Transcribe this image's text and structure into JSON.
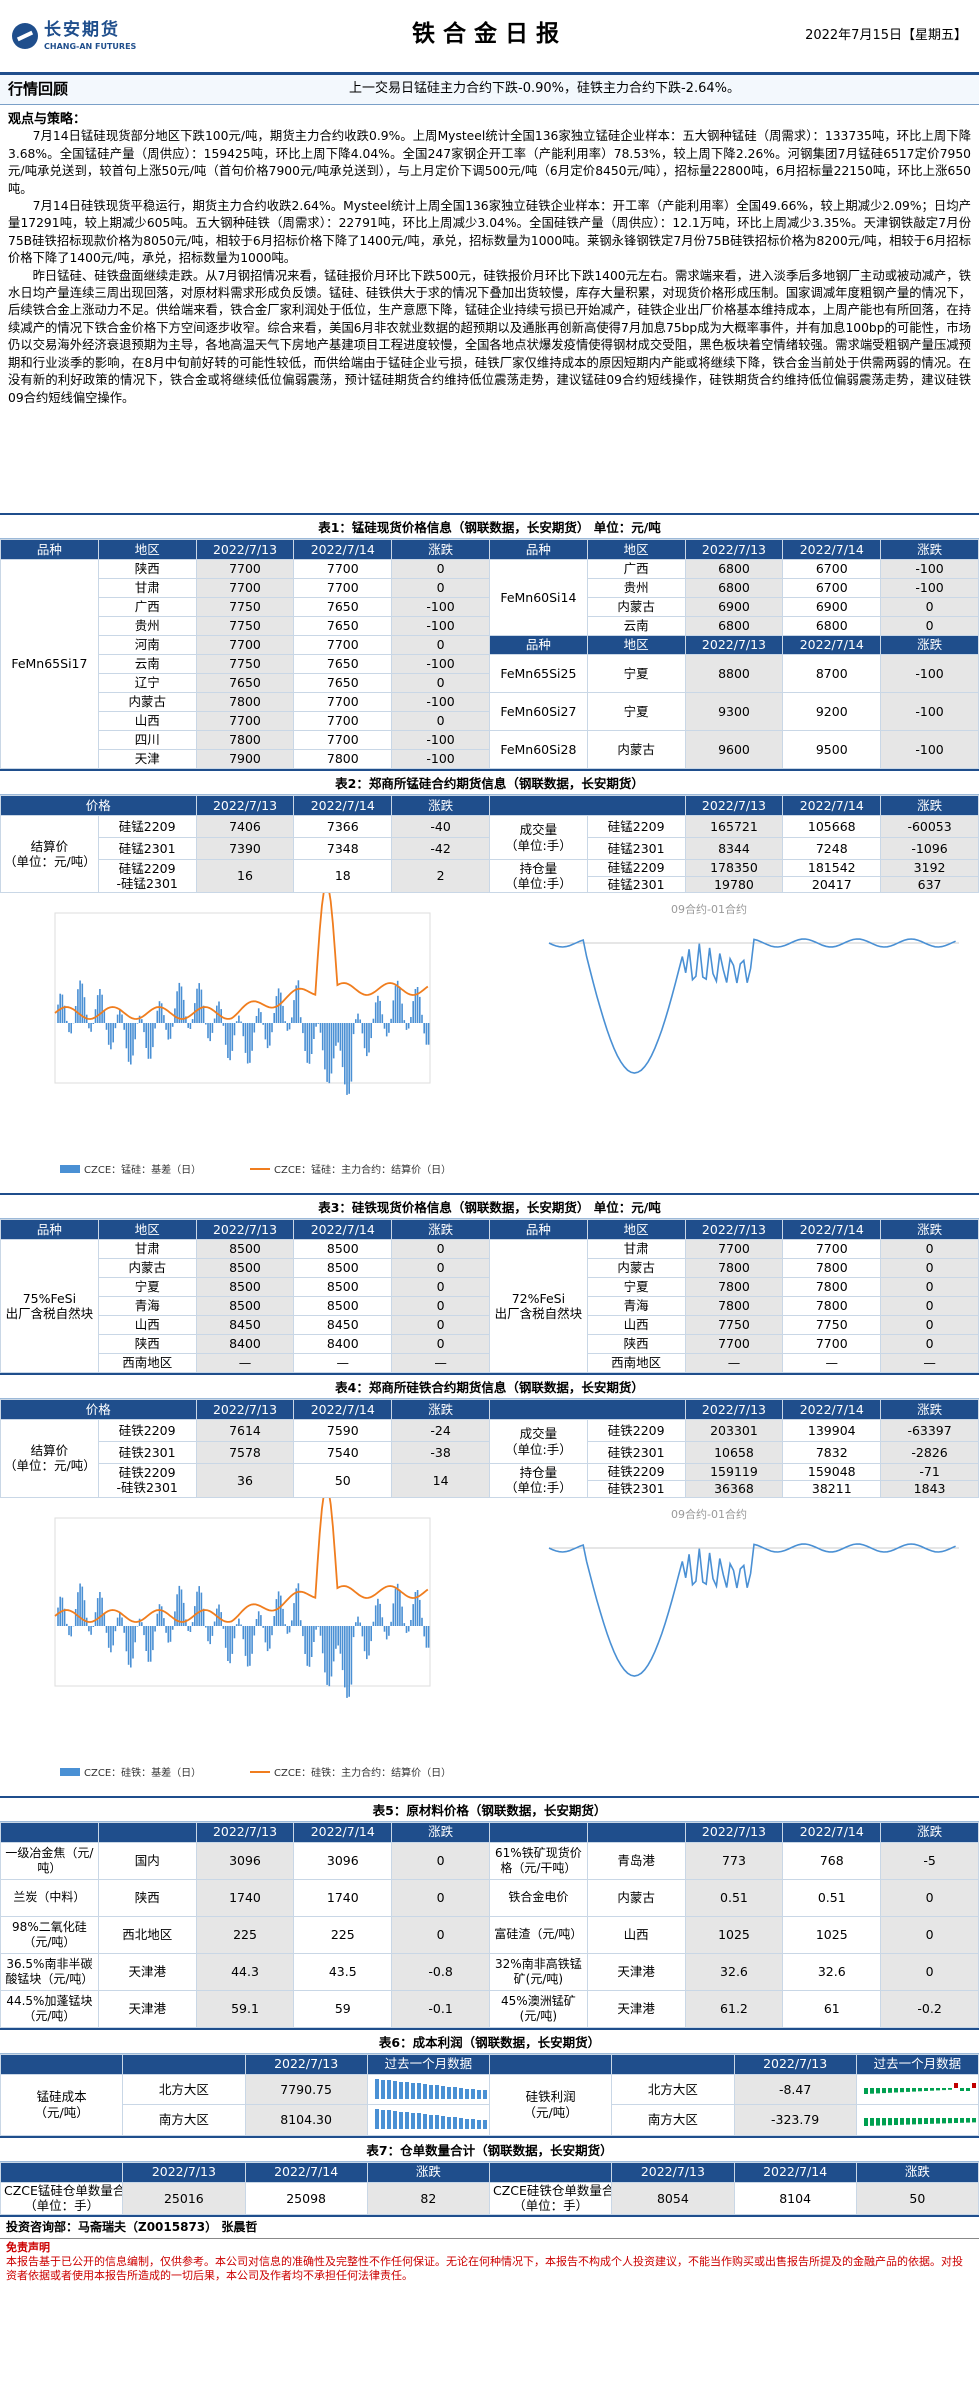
{
  "header": {
    "logo_cn": "长安期货",
    "logo_en": "CHANG-AN FUTURES",
    "title": "铁合金日报",
    "date": "2022年7月15日【星期五】"
  },
  "review": {
    "label": "行情回顾",
    "text": "上一交易日锰硅主力合约下跌-0.90%，硅铁主力合约下跌-2.64%。"
  },
  "views": {
    "heading": "观点与策略：",
    "p1": "7月14日锰硅现货部分地区下跌100元/吨，期货主力合约收跌0.9%。上周Mysteel统计全国136家独立锰硅企业样本：五大钢种锰硅（周需求）：133735吨，环比上周下降3.68%。全国锰硅产量（周供应）：159425吨，环比上周下降4.04%。全国247家钢企开工率（产能利用率）78.53%，较上周下降2.26%。河钢集团7月锰硅6517定价7950元/吨承兑送到，较首句上涨50元/吨（首句价格7900元/吨承兑送到），与上月定价下调500元/吨（6月定价8450元/吨），招标量22800吨，6月招标量22150吨，环比上涨650吨。",
    "p2": "7月14日硅铁现货平稳运行，期货主力合约收跌2.64%。Mysteel统计上周全国136家独立硅铁企业样本：开工率（产能利用率）全国49.66%，较上期减少2.09%；日均产量17291吨，较上期减少605吨。五大钢种硅铁（周需求）：22791吨，环比上周减少3.04%。全国硅铁产量（周供应）：12.1万吨，环比上周减少3.35%。天津钢铁敲定7月份75B硅铁招标现款价格为8050元/吨，相较于6月招标价格下降了1400元/吨，承兑，招标数量为1000吨。莱钢永锋钢铁定7月份75B硅铁招标价格为8200元/吨，相较于6月招标价格下降了1400元/吨，承兑，招标数量为1000吨。",
    "p3": "昨日锰硅、硅铁盘面继续走跌。从7月钢招情况来看，锰硅报价月环比下跌500元，硅铁报价月环比下跌1400元左右。需求端来看，进入淡季后多地钢厂主动或被动减产，铁水日均产量连续三周出现回落，对原材料需求形成负反馈。锰硅、硅铁供大于求的情况下叠加出货较慢，库存大量积累，对现货价格形成压制。国家调减年度粗钢产量的情况下，后续铁合金上涨动力不足。供给端来看，铁合金厂家利润处于低位，生产意愿下降，锰硅企业持续亏损已开始减产，硅铁企业出厂价格基本维持成本，上周产能也有所回落，在持续减产的情况下铁合金价格下方空间逐步收窄。综合来看，美国6月非农就业数据的超预期以及通胀再创新高使得7月加息75bp成为大概率事件，并有加息100bp的可能性，市场仍以交易海外经济衰退预期为主导，各地高温天气下房地产基建项目工程进度较慢，全国各地点状爆发疫情使得钢材成交受阻，黑色板块着空情绪较强。需求端受粗钢产量压减预期和行业淡季的影响，在8月中旬前好转的可能性较低，而供给端由于锰硅企业亏损，硅铁厂家仅维持成本的原因短期内产能或将继续下降，铁合金当前处于供需两弱的情况。在没有新的利好政策的情况下，铁合金或将继续低位偏弱震荡，预计锰硅期货合约维持低位震荡走势，建议锰硅09合约短线操作，硅铁期货合约维持低位偏弱震荡走势，建议硅铁09合约短线偏空操作。"
  },
  "t1": {
    "caption": "表1：锰硅现货价格信息（钢联数据，长安期货） 单位：元/吨",
    "heads": [
      "品种",
      "地区",
      "2022/7/13",
      "2022/7/14",
      "涨跌"
    ],
    "left_product": "FeMn65Si17",
    "left": [
      [
        "陕西",
        "7700",
        "7700",
        "0"
      ],
      [
        "甘肃",
        "7700",
        "7700",
        "0"
      ],
      [
        "广西",
        "7750",
        "7650",
        "-100"
      ],
      [
        "贵州",
        "7750",
        "7650",
        "-100"
      ],
      [
        "河南",
        "7700",
        "7700",
        "0"
      ],
      [
        "云南",
        "7750",
        "7650",
        "-100"
      ],
      [
        "辽宁",
        "7650",
        "7650",
        "0"
      ],
      [
        "内蒙古",
        "7800",
        "7700",
        "-100"
      ],
      [
        "山西",
        "7700",
        "7700",
        "0"
      ],
      [
        "四川",
        "7800",
        "7700",
        "-100"
      ],
      [
        "天津",
        "7900",
        "7800",
        "-100"
      ]
    ],
    "right_a_product": "FeMn60Si14",
    "right_a": [
      [
        "广西",
        "6800",
        "6700",
        "-100"
      ],
      [
        "贵州",
        "6800",
        "6700",
        "-100"
      ],
      [
        "内蒙古",
        "6900",
        "6900",
        "0"
      ],
      [
        "云南",
        "6800",
        "6800",
        "0"
      ]
    ],
    "right_b": [
      {
        "product": "FeMn65Si25",
        "region": "宁夏",
        "v1": "8800",
        "v2": "8700",
        "d": "-100"
      },
      {
        "product": "FeMn60Si27",
        "region": "宁夏",
        "v1": "9300",
        "v2": "9200",
        "d": "-100"
      },
      {
        "product": "FeMn60Si28",
        "region": "内蒙古",
        "v1": "9600",
        "v2": "9500",
        "d": "-100"
      }
    ]
  },
  "t2": {
    "caption": "表2：郑商所锰硅合约期货信息（钢联数据，长安期货）",
    "heads": [
      "价格",
      "",
      "2022/7/13",
      "2022/7/14",
      "涨跌"
    ],
    "settle_label": "结算价\n（单位：元/吨）",
    "rows": [
      [
        "硅锰2209",
        "7406",
        "7366",
        "-40"
      ],
      [
        "硅锰2301",
        "7390",
        "7348",
        "-42"
      ],
      [
        "硅锰2209\n-硅锰2301",
        "16",
        "18",
        "2"
      ]
    ],
    "vol_label": "成交量\n（单位:手）",
    "oi_label": "持仓量\n（单位:手）",
    "vol": [
      [
        "硅锰2209",
        "165721",
        "105668",
        "-60053"
      ],
      [
        "硅锰2301",
        "8344",
        "7248",
        "-1096"
      ]
    ],
    "oi": [
      [
        "硅锰2209",
        "178350",
        "181542",
        "3192"
      ],
      [
        "硅锰2301",
        "19780",
        "20417",
        "637"
      ]
    ]
  },
  "c1": {
    "legend_basis": "CZCE：锰硅：基差（日）",
    "legend_settle": "CZCE：锰硅：主力合约：结算价（日）",
    "title_r": "09合约-01合约"
  },
  "t3": {
    "caption": "表3：硅铁现货价格信息（钢联数据，长安期货） 单位：元/吨",
    "heads": [
      "品种",
      "地区",
      "2022/7/13",
      "2022/7/14",
      "涨跌"
    ],
    "product": "75%FeSi\n出厂含税自然块",
    "product_r": "72%FeSi\n出厂含税自然块",
    "left": [
      [
        "甘肃",
        "8500",
        "8500",
        "0"
      ],
      [
        "内蒙古",
        "8500",
        "8500",
        "0"
      ],
      [
        "宁夏",
        "8500",
        "8500",
        "0"
      ],
      [
        "青海",
        "8500",
        "8500",
        "0"
      ],
      [
        "山西",
        "8450",
        "8450",
        "0"
      ],
      [
        "陕西",
        "8400",
        "8400",
        "0"
      ],
      [
        "西南地区",
        "—",
        "—",
        "—"
      ]
    ],
    "right": [
      [
        "甘肃",
        "7700",
        "7700",
        "0"
      ],
      [
        "内蒙古",
        "7800",
        "7800",
        "0"
      ],
      [
        "宁夏",
        "7800",
        "7800",
        "0"
      ],
      [
        "青海",
        "7800",
        "7800",
        "0"
      ],
      [
        "山西",
        "7750",
        "7750",
        "0"
      ],
      [
        "陕西",
        "7700",
        "7700",
        "0"
      ],
      [
        "西南地区",
        "—",
        "—",
        "—"
      ]
    ]
  },
  "t4": {
    "caption": "表4：郑商所硅铁合约期货信息（钢联数据，长安期货）",
    "heads": [
      "价格",
      "",
      "2022/7/13",
      "2022/7/14",
      "涨跌"
    ],
    "settle_label": "结算价\n（单位：元/吨）",
    "rows": [
      [
        "硅铁2209",
        "7614",
        "7590",
        "-24"
      ],
      [
        "硅铁2301",
        "7578",
        "7540",
        "-38"
      ],
      [
        "硅铁2209\n-硅铁2301",
        "36",
        "50",
        "14"
      ]
    ],
    "vol_label": "成交量\n（单位:手）",
    "oi_label": "持仓量\n（单位:手）",
    "vol": [
      [
        "硅铁2209",
        "203301",
        "139904",
        "-63397"
      ],
      [
        "硅铁2301",
        "10658",
        "7832",
        "-2826"
      ]
    ],
    "oi": [
      [
        "硅铁2209",
        "159119",
        "159048",
        "-71"
      ],
      [
        "硅铁2301",
        "36368",
        "38211",
        "1843"
      ]
    ]
  },
  "c2": {
    "legend_basis": "CZCE：硅铁：基差（日）",
    "legend_settle": "CZCE：硅铁：主力合约：结算价（日）",
    "title_r": "09合约-01合约"
  },
  "t5": {
    "caption": "表5：原材料价格（钢联数据，长安期货）",
    "heads": [
      "",
      "",
      "2022/7/13",
      "2022/7/14",
      "涨跌",
      "",
      "",
      "2022/7/13",
      "2022/7/14",
      "涨跌"
    ],
    "rows": [
      [
        "一级冶金焦（元/吨）",
        "国内",
        "3096",
        "3096",
        "0",
        "61%铁矿现货价格（元/干吨）",
        "青岛港",
        "773",
        "768",
        "-5"
      ],
      [
        "兰炭（中料）",
        "陕西",
        "1740",
        "1740",
        "0",
        "铁合金电价",
        "内蒙古",
        "0.51",
        "0.51",
        "0"
      ],
      [
        "98%二氧化硅（元/吨）",
        "西北地区",
        "225",
        "225",
        "0",
        "富硅渣（元/吨）",
        "山西",
        "1025",
        "1025",
        "0"
      ],
      [
        "36.5%南非半碳酸锰块（元/吨）",
        "天津港",
        "44.3",
        "43.5",
        "-0.8",
        "32%南非高铁锰矿(元/吨)",
        "天津港",
        "32.6",
        "32.6",
        "0"
      ],
      [
        "44.5%加蓬锰块（元/吨）",
        "天津港",
        "59.1",
        "59",
        "-0.1",
        "45%澳洲锰矿(元/吨)",
        "天津港",
        "61.2",
        "61",
        "-0.2"
      ]
    ]
  },
  "t6": {
    "caption": "表6：成本利润（钢联数据，长安期货）",
    "heads": [
      "",
      "",
      "2022/7/13",
      "过去一个月数据",
      "",
      "",
      "2022/7/13",
      "过去一个月数据"
    ],
    "left_label": "锰硅成本\n（元/吨）",
    "right_label": "硅铁利润\n（元/吨）",
    "left": [
      [
        "北方大区",
        "7790.75"
      ],
      [
        "南方大区",
        "8104.30"
      ]
    ],
    "right": [
      [
        "北方大区",
        "-8.47"
      ],
      [
        "南方大区",
        "-323.79"
      ]
    ]
  },
  "t7": {
    "caption": "表7：仓单数量合计（钢联数据，长安期货）",
    "heads": [
      "",
      "2022/7/13",
      "2022/7/14",
      "涨跌",
      "",
      "2022/7/13",
      "2022/7/14",
      "涨跌"
    ],
    "l_label": "CZCE锰硅仓单数量合计\n（单位：手）",
    "l": [
      "25016",
      "25098",
      "82"
    ],
    "r_label": "CZCE硅铁仓单数量合计\n（单位：手）",
    "r": [
      "8054",
      "8104",
      "50"
    ]
  },
  "contact": "投资咨询部：马斋瑞夫（Z0015873） 张晨哲",
  "disclaimer_title": "免责声明",
  "disclaimer": "本报告基于已公开的信息编制，仅供参考。本公司对信息的准确性及完整性不作任何保证。无论在何种情况下，本报告不构成个人投资建议，不能当作购买或出售报告所提及的金融产品的依据。对投资者依据或者使用本报告所造成的一切后果，本公司及作者均不承担任何法律责任。",
  "colors": {
    "brand": "#1f4e8c",
    "blue_series": "#4a90d4",
    "orange_series": "#f07d1e",
    "loss": "#c00000",
    "gain": "#00a050"
  }
}
